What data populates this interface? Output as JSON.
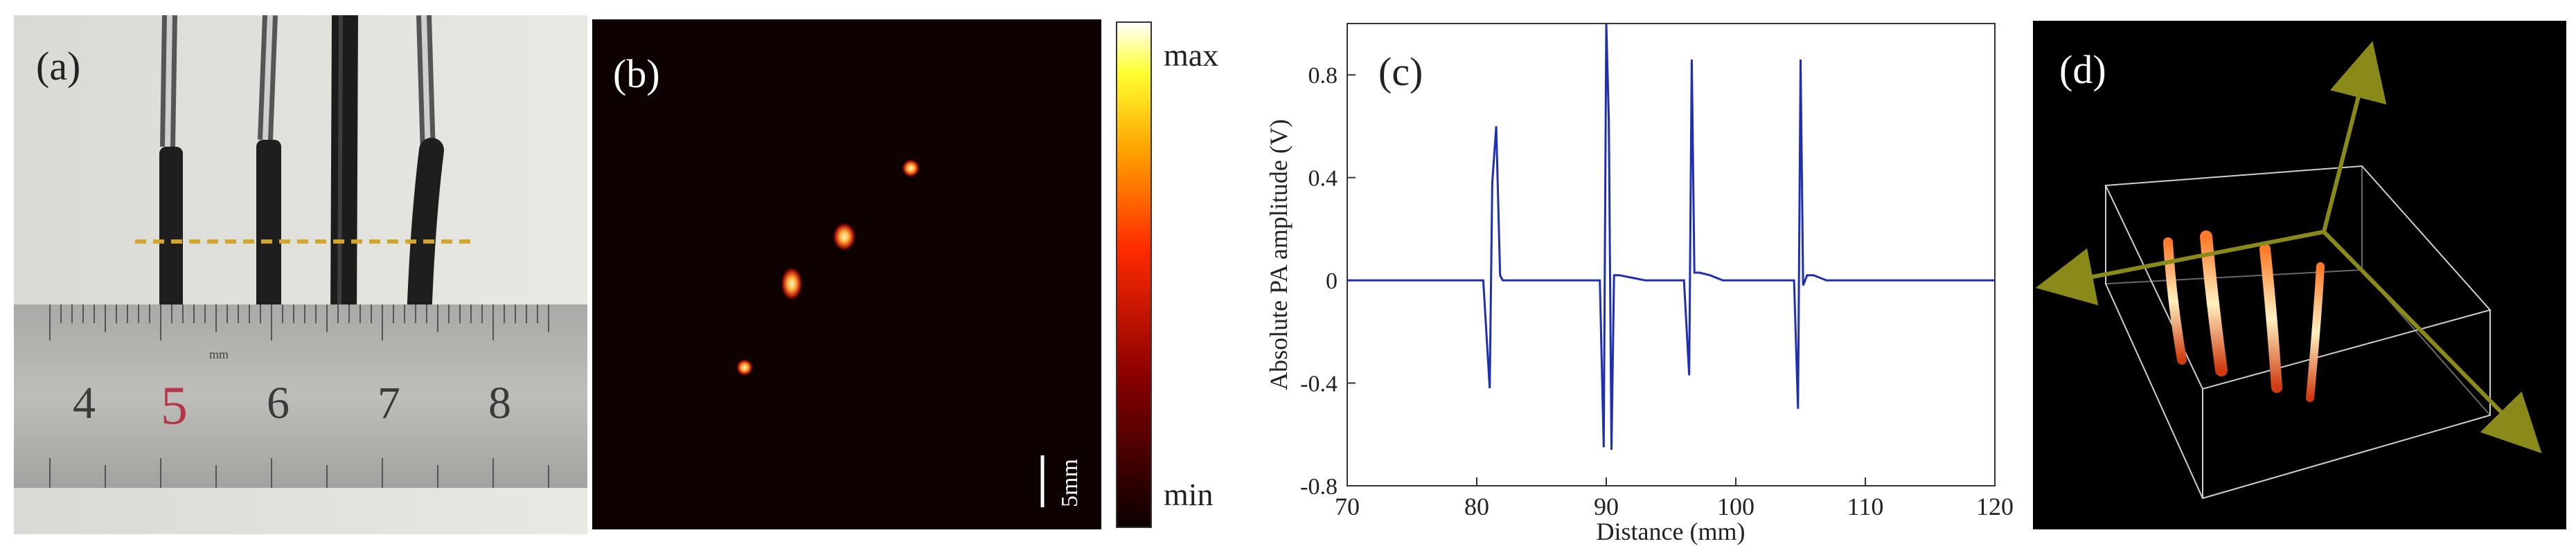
{
  "figure": {
    "panels": [
      {
        "label": "(a)"
      },
      {
        "label": "(b)"
      },
      {
        "label": "(c)"
      },
      {
        "label": "(d)"
      }
    ]
  },
  "panel_a": {
    "ruler_numbers": [
      "4",
      "5",
      "6",
      "7",
      "8"
    ],
    "ruler_unit": "mm",
    "highlight_number": "5",
    "colors": {
      "highlight": "#b5364a",
      "dashed_line": "#d4a52a"
    }
  },
  "panel_b": {
    "scale_bar_label": "5mm",
    "colorbar_max": "max",
    "colorbar_min": "min"
  },
  "chart_data": {
    "type": "line",
    "xlabel": "Distance (mm)",
    "ylabel": "Absolute PA amplitude (V)",
    "xlim": [
      70,
      120
    ],
    "ylim": [
      -0.8,
      1.0
    ],
    "x_ticks": [
      "70",
      "80",
      "90",
      "100",
      "110",
      "120"
    ],
    "y_ticks": [
      "0.8",
      "0.4",
      "0",
      "-0.4",
      "-0.8"
    ],
    "color": "#1f2fb0",
    "grid": false,
    "series": [
      {
        "x": [
          70.0,
          80.5,
          81.0,
          81.2,
          81.5,
          81.8,
          82.0,
          82.5,
          89.5,
          89.8,
          90.0,
          90.2,
          90.4,
          90.6,
          91.0,
          92.0,
          93.0,
          96.0,
          96.4,
          96.6,
          96.8,
          97.2,
          98.0,
          99.0,
          104.5,
          104.8,
          105.0,
          105.2,
          105.5,
          106.0,
          107.0,
          120.0
        ],
        "y": [
          0.0,
          0.0,
          -0.42,
          0.38,
          0.6,
          0.02,
          0.0,
          0.0,
          0.0,
          -0.65,
          1.0,
          0.62,
          -0.66,
          0.02,
          0.02,
          0.01,
          0.0,
          0.0,
          -0.37,
          0.86,
          0.03,
          0.03,
          0.02,
          0.0,
          0.0,
          -0.5,
          0.86,
          -0.02,
          0.02,
          0.02,
          0.0,
          0.0
        ]
      }
    ]
  },
  "panel_d": {
    "colors": {
      "axis": "#8a8a1a",
      "box": "#cfcfcf"
    }
  }
}
